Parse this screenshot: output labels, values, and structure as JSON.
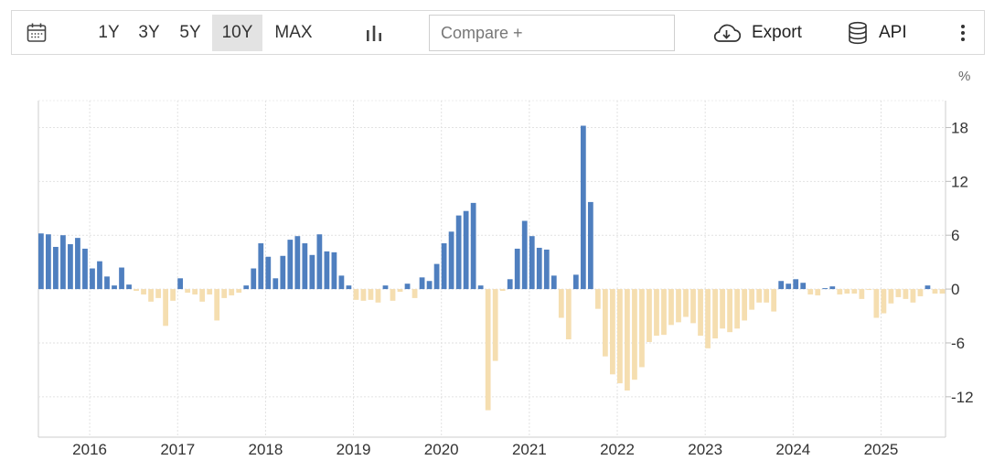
{
  "toolbar": {
    "ranges": [
      "1Y",
      "3Y",
      "5Y",
      "10Y",
      "MAX"
    ],
    "active_range": "10Y",
    "compare_placeholder": "Compare +",
    "export_label": "Export",
    "api_label": "API",
    "icons": [
      "calendar-icon",
      "bar-chart-icon",
      "cloud-download-icon",
      "database-icon",
      "more-vertical-icon"
    ]
  },
  "chart_data": {
    "type": "bar",
    "unit": "%",
    "ylim": [
      -16.5,
      21
    ],
    "yticks": [
      18,
      12,
      6,
      0,
      -6,
      -12
    ],
    "xlabels": [
      "2016",
      "2017",
      "2018",
      "2019",
      "2020",
      "2021",
      "2022",
      "2023",
      "2024",
      "2025"
    ],
    "colors": {
      "positive": "#4f7fbf",
      "negative": "#f5deb0"
    },
    "grid": true,
    "start": "2015-06",
    "frequency": "monthly",
    "values": [
      6.2,
      6.1,
      4.7,
      6.0,
      5.0,
      5.7,
      4.5,
      2.3,
      3.1,
      1.4,
      0.4,
      2.4,
      0.5,
      -0.2,
      -0.6,
      -1.4,
      -1.0,
      -4.1,
      -1.3,
      1.2,
      -0.4,
      -0.6,
      -1.4,
      -0.6,
      -3.5,
      -1.0,
      -0.7,
      -0.4,
      0.4,
      2.3,
      5.1,
      3.6,
      1.2,
      3.7,
      5.5,
      5.9,
      5.1,
      3.8,
      6.1,
      4.2,
      4.1,
      1.5,
      0.4,
      -1.2,
      -1.3,
      -1.2,
      -1.5,
      0.4,
      -1.3,
      -0.3,
      0.6,
      -1.0,
      1.3,
      0.9,
      2.8,
      5.1,
      6.4,
      8.2,
      8.7,
      9.6,
      0.4,
      -13.5,
      -8.0,
      -0.2,
      1.1,
      4.5,
      7.6,
      5.9,
      4.6,
      4.4,
      1.5,
      -3.2,
      -5.6,
      1.6,
      18.2,
      9.7,
      -2.2,
      -7.5,
      -9.5,
      -10.5,
      -11.3,
      -10.1,
      -8.7,
      -5.9,
      -5.2,
      -5.1,
      -4.0,
      -3.7,
      -3.1,
      -3.8,
      -5.2,
      -6.6,
      -5.5,
      -4.4,
      -4.8,
      -4.4,
      -3.5,
      -2.3,
      -1.5,
      -1.5,
      -2.5,
      0.9,
      0.6,
      1.1,
      0.7,
      -0.6,
      -0.7,
      0.1,
      0.3,
      -0.6,
      -0.5,
      -0.5,
      -1.1,
      -0.1,
      -3.2,
      -2.7,
      -1.6,
      -0.9,
      -1.1,
      -1.5,
      -0.8,
      0.4,
      -0.5,
      -0.5
    ]
  }
}
